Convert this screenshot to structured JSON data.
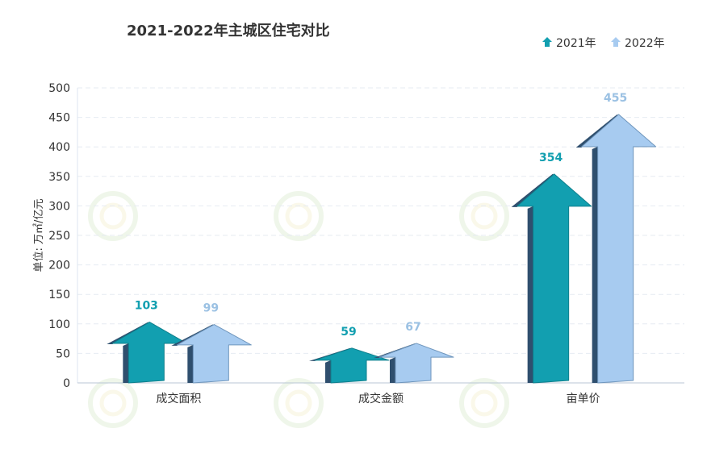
{
  "chart_data": {
    "type": "bar",
    "title": "2021-2022年主城区住宅对比",
    "ylabel": "单位: 万㎡/亿元",
    "xlabel": "",
    "categories": [
      "成交面积",
      "成交金额",
      "亩单价"
    ],
    "series": [
      {
        "name": "2021年",
        "values": [
          103,
          59,
          354
        ],
        "color": "#129fb0"
      },
      {
        "name": "2022年",
        "values": [
          99,
          67,
          455
        ],
        "color": "#a7cbf0"
      }
    ],
    "ylim": [
      0,
      500
    ],
    "yticks": [
      0,
      50,
      100,
      150,
      200,
      250,
      300,
      350,
      400,
      450,
      500
    ],
    "grid": true,
    "legend_position": "top-right",
    "value_label_colors": [
      "#129fb0",
      "#9bc1e3"
    ]
  }
}
